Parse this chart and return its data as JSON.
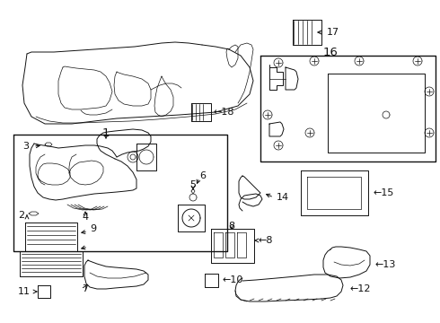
{
  "bg": "#ffffff",
  "lc": "#111111",
  "fig_w": 4.9,
  "fig_h": 3.6,
  "dpi": 100,
  "label_fs": 7.5,
  "label_fs_big": 9.5
}
